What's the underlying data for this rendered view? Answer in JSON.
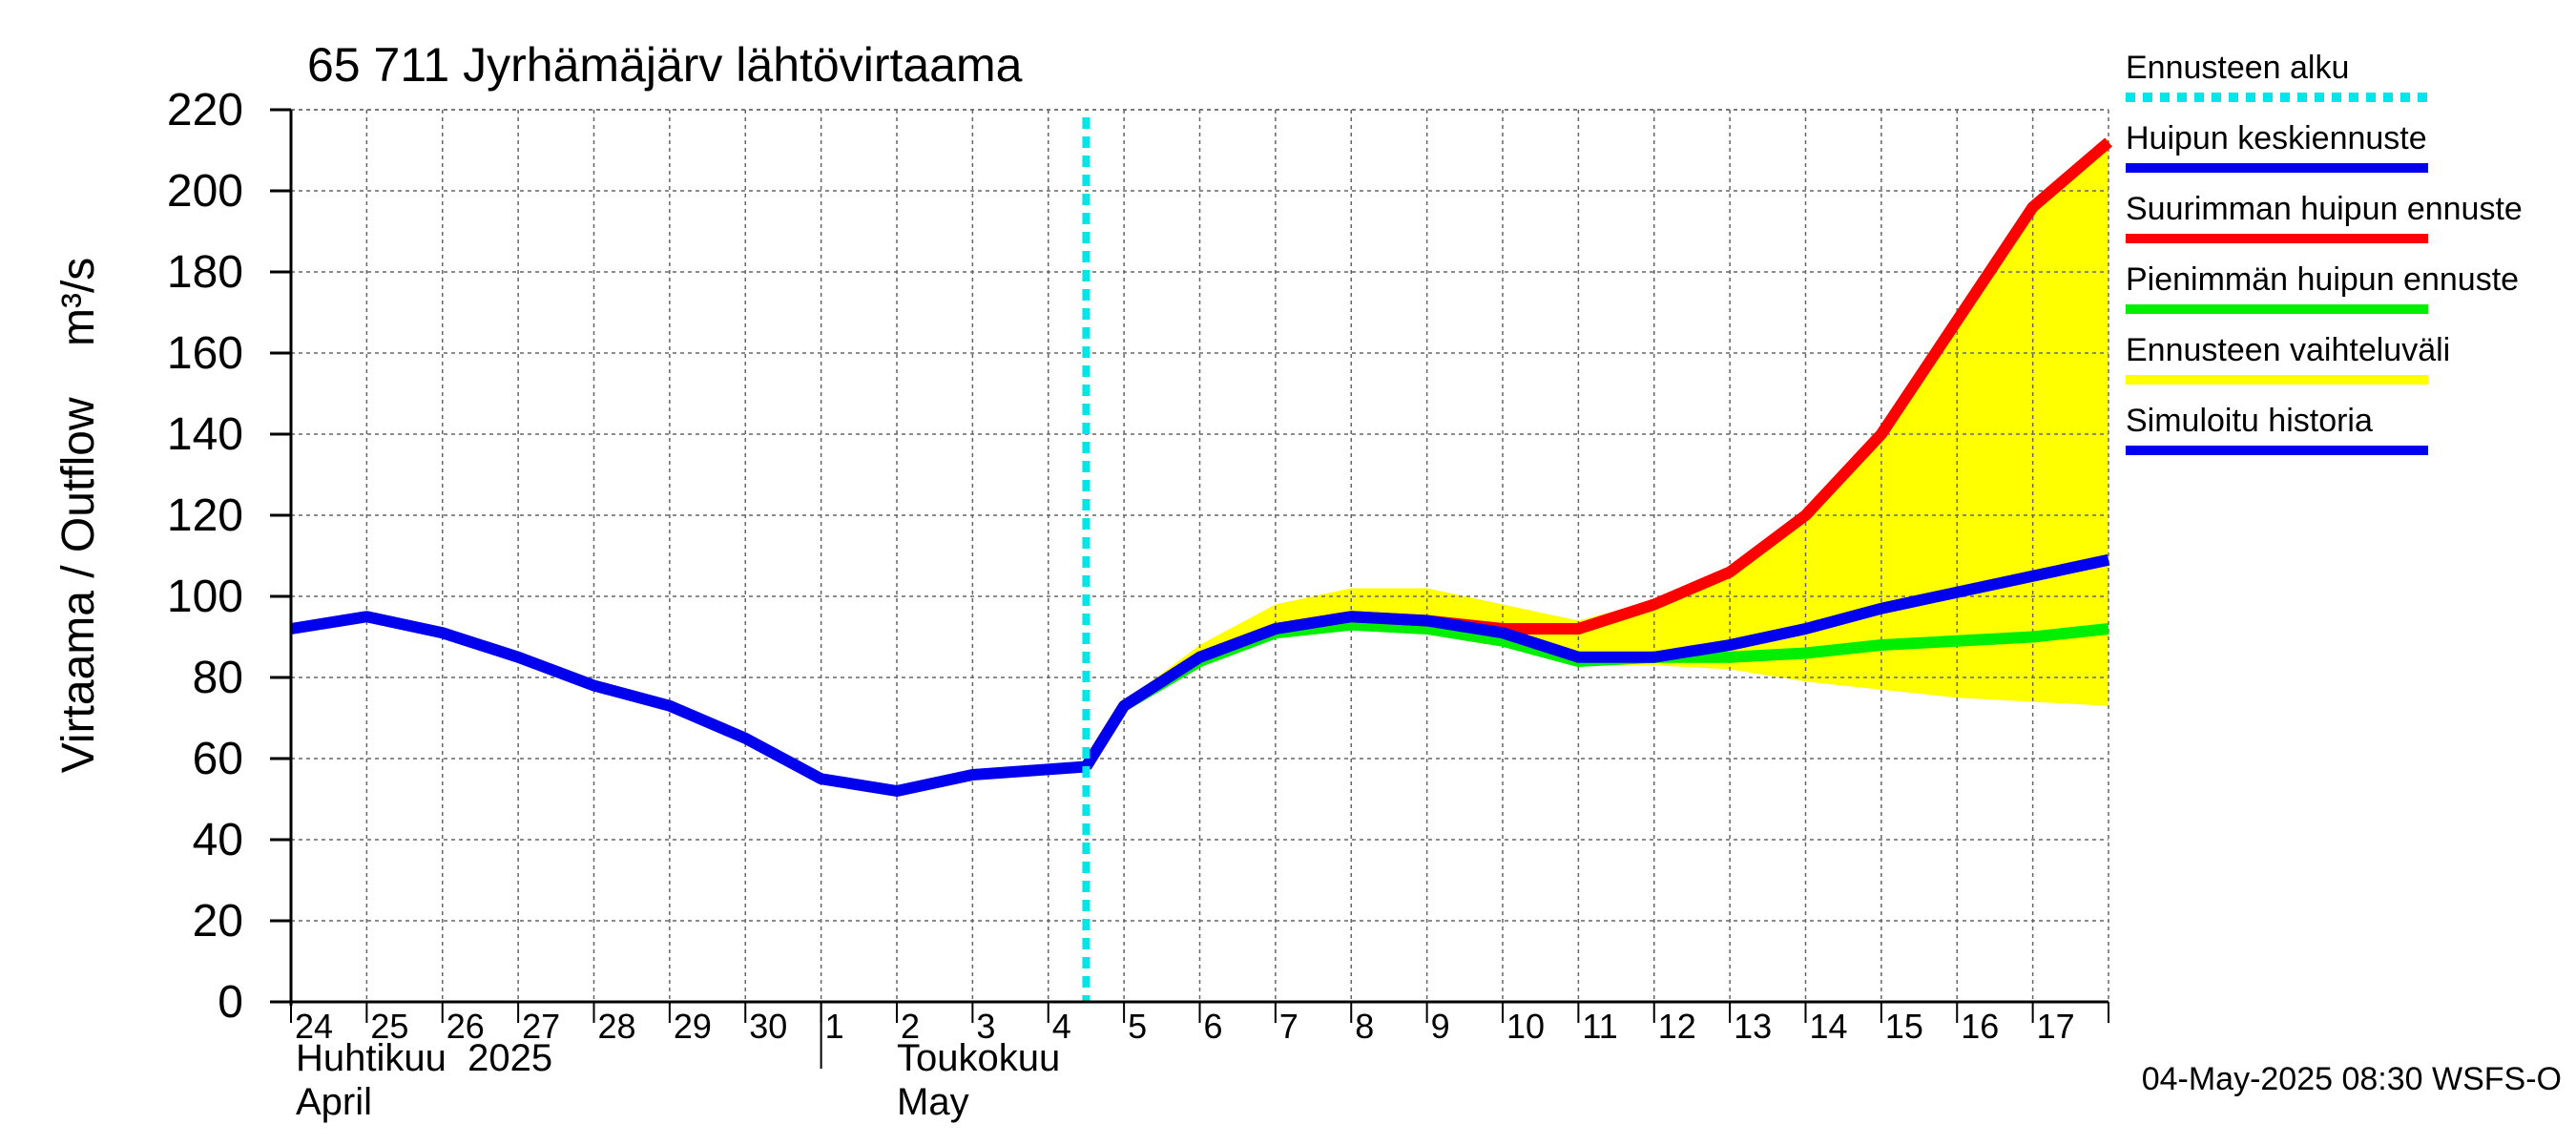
{
  "chart_data": {
    "type": "line",
    "title": "65 711 Jyrhämäjärv lähtövirtaama",
    "ylabel": "Virtaama / Outflow    m³/s",
    "ylim": [
      0,
      220
    ],
    "y_ticks": [
      0,
      20,
      40,
      60,
      80,
      100,
      120,
      140,
      160,
      180,
      200,
      220
    ],
    "x_tick_labels": [
      "24",
      "25",
      "26",
      "27",
      "28",
      "29",
      "30",
      "1",
      "2",
      "3",
      "4",
      "5",
      "6",
      "7",
      "8",
      "9",
      "10",
      "11",
      "12",
      "13",
      "14",
      "15",
      "16",
      "17"
    ],
    "month_labels": [
      {
        "fi": "Huhtikuu  2025",
        "en": "April"
      },
      {
        "fi": "Toukokuu",
        "en": "May"
      }
    ],
    "forecast_start_day": 10.5,
    "series": [
      {
        "name": "Simuloitu historia",
        "color": "#0000ee",
        "x": [
          0,
          1,
          2,
          3,
          4,
          5,
          6,
          7,
          8,
          9,
          10.5
        ],
        "y": [
          92,
          95,
          91,
          85,
          78,
          73,
          65,
          55,
          52,
          56,
          58
        ]
      },
      {
        "name": "Huipun keskiennuste",
        "color": "#0000ee",
        "x": [
          10.5,
          11,
          12,
          13,
          14,
          15,
          16,
          17,
          18,
          19,
          20,
          21,
          22,
          23,
          24
        ],
        "y": [
          58,
          73,
          85,
          92,
          95,
          94,
          91,
          85,
          85,
          88,
          92,
          97,
          101,
          105,
          109
        ]
      },
      {
        "name": "Suurimman huipun ennuste",
        "color": "#ff0000",
        "x": [
          10.5,
          11,
          12,
          13,
          14,
          15,
          16,
          17,
          18,
          19,
          20,
          21,
          22,
          23,
          24
        ],
        "y": [
          58,
          73,
          85,
          92,
          95,
          94,
          92,
          92,
          98,
          106,
          120,
          140,
          168,
          196,
          212
        ]
      },
      {
        "name": "Pienimmän huipun ennuste",
        "color": "#00ee00",
        "x": [
          10.5,
          11,
          12,
          13,
          14,
          15,
          16,
          17,
          18,
          19,
          20,
          21,
          22,
          23,
          24
        ],
        "y": [
          58,
          73,
          84,
          91,
          93,
          92,
          89,
          84,
          85,
          85,
          86,
          88,
          89,
          90,
          92
        ]
      }
    ],
    "range_band": {
      "name": "Ennusteen vaihteluväli",
      "color": "#ffff00",
      "x": [
        10.5,
        11,
        12,
        13,
        14,
        15,
        16,
        17,
        18,
        19,
        20,
        21,
        22,
        23,
        24
      ],
      "upper": [
        58,
        74,
        88,
        98,
        102,
        102,
        98,
        94,
        99,
        107,
        121,
        141,
        169,
        197,
        213
      ],
      "lower": [
        58,
        72,
        83,
        90,
        92,
        91,
        88,
        83,
        83,
        82,
        79,
        77,
        75,
        74,
        73
      ]
    }
  },
  "legend": [
    {
      "label": "Ennusteen alku",
      "color": "#00e5e5",
      "style": "dashed"
    },
    {
      "label": "Huipun keskiennuste",
      "color": "#0000ee",
      "style": "solid"
    },
    {
      "label": "Suurimman huipun ennuste",
      "color": "#ff0000",
      "style": "solid"
    },
    {
      "label": "Pienimmän huipun ennuste",
      "color": "#00ee00",
      "style": "solid"
    },
    {
      "label": "Ennusteen vaihteluväli",
      "color": "#ffff00",
      "style": "solid"
    },
    {
      "label": "Simuloitu historia",
      "color": "#0000ee",
      "style": "solid"
    }
  ],
  "footer": "04-May-2025 08:30 WSFS-O"
}
